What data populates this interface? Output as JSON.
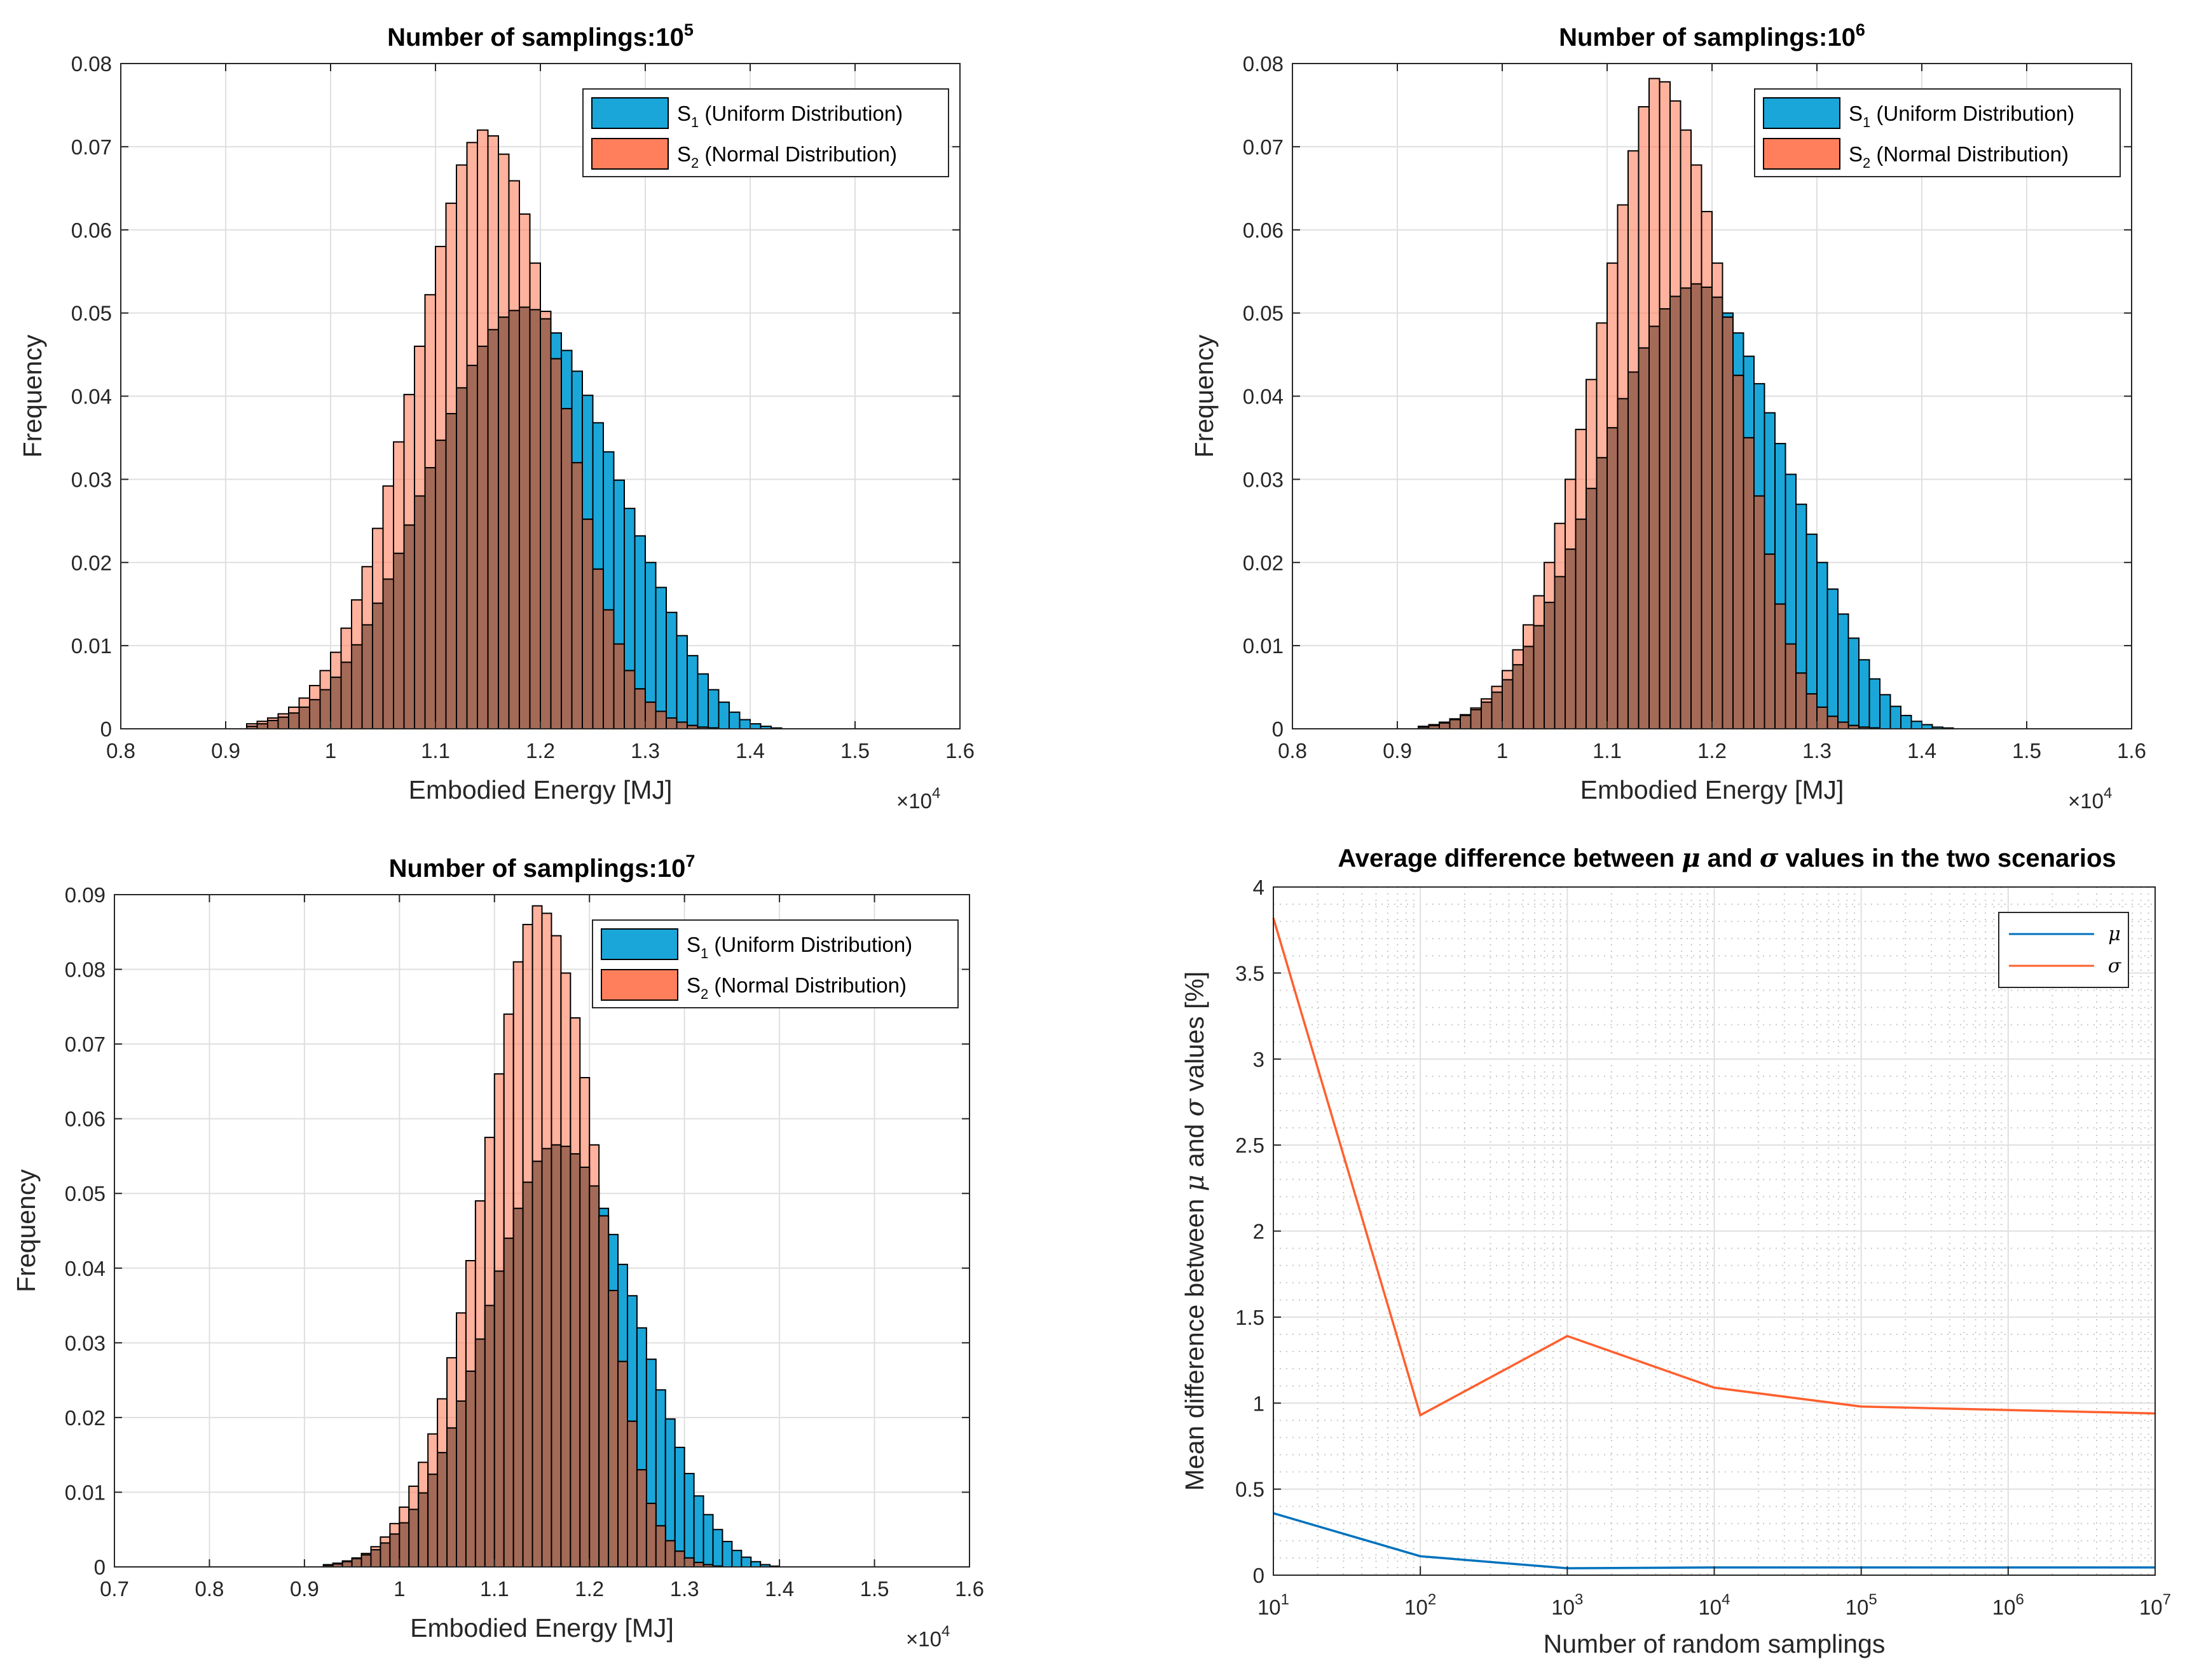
{
  "colors": {
    "uniform": "#1aa6d9",
    "normal": "#ff7f5c",
    "overlap": "#a36a57",
    "mu_line": "#0072bd",
    "sigma_line": "#ff5f2e"
  },
  "legend_labels": {
    "s1_main": "S",
    "s1_sub": "1",
    "s1_rest": " (Uniform Distribution)",
    "s2_main": "S",
    "s2_sub": "2",
    "s2_rest": " (Normal Distribution)"
  },
  "chart_data": [
    {
      "type": "bar",
      "title": "Number of samplings:10",
      "title_exp": "5",
      "xlabel": "Embodied Energy [MJ]",
      "ylabel": "Frequency",
      "x_multiplier": "×10",
      "x_multiplier_exp": "4",
      "xlim": [
        0.8,
        1.6
      ],
      "ylim": [
        0,
        0.08
      ],
      "xticks": [
        "0.8",
        "0.9",
        "1",
        "1.1",
        "1.2",
        "1.3",
        "1.4",
        "1.5",
        "1.6"
      ],
      "yticks": [
        "0",
        "0.01",
        "0.02",
        "0.03",
        "0.04",
        "0.05",
        "0.06",
        "0.07",
        "0.08"
      ],
      "legend_position": "top-right",
      "bin_start": 0.83,
      "bin_width": 0.01,
      "series": [
        {
          "name": "S1 (Uniform Distribution)",
          "values": [
            0,
            0,
            0,
            0,
            0,
            0,
            0,
            0,
            0,
            0.0003,
            0.0006,
            0.001,
            0.0014,
            0.0019,
            0.0026,
            0.0035,
            0.0047,
            0.0062,
            0.008,
            0.0101,
            0.0125,
            0.0151,
            0.018,
            0.0211,
            0.0245,
            0.028,
            0.0314,
            0.0347,
            0.0379,
            0.041,
            0.0437,
            0.046,
            0.048,
            0.0495,
            0.0503,
            0.0507,
            0.0504,
            0.0493,
            0.0476,
            0.0455,
            0.043,
            0.0401,
            0.0368,
            0.0333,
            0.0299,
            0.0265,
            0.0232,
            0.02,
            0.017,
            0.014,
            0.0112,
            0.0088,
            0.0066,
            0.0047,
            0.0032,
            0.002,
            0.0011,
            0.0006,
            0.0003,
            0.0001,
            0,
            0,
            0,
            0,
            0,
            0,
            0,
            0,
            0,
            0,
            0,
            0,
            0
          ]
        },
        {
          "name": "S2 (Normal Distribution)",
          "values": [
            0,
            0,
            0,
            0,
            0,
            0,
            0,
            0,
            0,
            0.0006,
            0.0009,
            0.0013,
            0.0018,
            0.0026,
            0.0037,
            0.0052,
            0.007,
            0.0092,
            0.0121,
            0.0155,
            0.0195,
            0.0241,
            0.0292,
            0.0345,
            0.0402,
            0.046,
            0.0522,
            0.058,
            0.0632,
            0.0678,
            0.0705,
            0.072,
            0.0713,
            0.0691,
            0.0659,
            0.0619,
            0.056,
            0.0502,
            0.0445,
            0.0385,
            0.032,
            0.0252,
            0.0192,
            0.0143,
            0.0102,
            0.007,
            0.0048,
            0.0032,
            0.0021,
            0.0013,
            0.0008,
            0.0004,
            0.0002,
            0.0001,
            0,
            0,
            0,
            0,
            0,
            0,
            0,
            0,
            0,
            0,
            0,
            0,
            0,
            0,
            0,
            0,
            0,
            0,
            0
          ]
        }
      ]
    },
    {
      "type": "bar",
      "title": "Number of samplings:10",
      "title_exp": "6",
      "xlabel": "Embodied Energy [MJ]",
      "ylabel": "Frequency",
      "x_multiplier": "×10",
      "x_multiplier_exp": "4",
      "xlim": [
        0.8,
        1.6
      ],
      "ylim": [
        0,
        0.08
      ],
      "xticks": [
        "0.8",
        "0.9",
        "1",
        "1.1",
        "1.2",
        "1.3",
        "1.4",
        "1.5",
        "1.6"
      ],
      "yticks": [
        "0",
        "0.01",
        "0.02",
        "0.03",
        "0.04",
        "0.05",
        "0.06",
        "0.07",
        "0.08"
      ],
      "legend_position": "top-right",
      "bin_start": 0.83,
      "bin_width": 0.01,
      "series": [
        {
          "name": "S1 (Uniform Distribution)",
          "values": [
            0,
            0,
            0,
            0,
            0,
            0,
            0,
            0,
            0,
            0.0002,
            0.0004,
            0.0007,
            0.0011,
            0.0016,
            0.0023,
            0.0032,
            0.0044,
            0.0059,
            0.0077,
            0.0099,
            0.0124,
            0.0152,
            0.0183,
            0.0216,
            0.0252,
            0.0289,
            0.0326,
            0.0362,
            0.0397,
            0.0429,
            0.0458,
            0.0484,
            0.0505,
            0.052,
            0.053,
            0.0535,
            0.0531,
            0.0519,
            0.05,
            0.0476,
            0.0448,
            0.0415,
            0.038,
            0.0343,
            0.0306,
            0.027,
            0.0234,
            0.02,
            0.0168,
            0.0138,
            0.0109,
            0.0083,
            0.006,
            0.0041,
            0.0027,
            0.0016,
            0.0009,
            0.0005,
            0.0002,
            0.0001,
            0,
            0,
            0,
            0,
            0,
            0,
            0,
            0,
            0,
            0,
            0,
            0,
            0
          ]
        },
        {
          "name": "S2 (Normal Distribution)",
          "values": [
            0,
            0,
            0,
            0,
            0,
            0,
            0,
            0,
            0,
            0.0003,
            0.0005,
            0.0008,
            0.0012,
            0.0017,
            0.0025,
            0.0036,
            0.0051,
            0.007,
            0.0095,
            0.0125,
            0.016,
            0.02,
            0.0247,
            0.03,
            0.036,
            0.042,
            0.0488,
            0.056,
            0.063,
            0.0695,
            0.0748,
            0.0782,
            0.0778,
            0.0755,
            0.072,
            0.0678,
            0.0622,
            0.056,
            0.0495,
            0.0425,
            0.035,
            0.028,
            0.021,
            0.015,
            0.0102,
            0.0067,
            0.0042,
            0.0026,
            0.0015,
            0.0008,
            0.0004,
            0.0002,
            0.0001,
            0,
            0,
            0,
            0,
            0,
            0,
            0,
            0,
            0,
            0,
            0,
            0,
            0,
            0,
            0,
            0,
            0,
            0,
            0,
            0
          ]
        }
      ]
    },
    {
      "type": "bar",
      "title": "Number of samplings:10",
      "title_exp": "7",
      "xlabel": "Embodied Energy [MJ]",
      "ylabel": "Frequency",
      "x_multiplier": "×10",
      "x_multiplier_exp": "4",
      "xlim": [
        0.7,
        1.6
      ],
      "ylim": [
        0,
        0.09
      ],
      "xticks": [
        "0.7",
        "0.8",
        "0.9",
        "1",
        "1.1",
        "1.2",
        "1.3",
        "1.4",
        "1.5",
        "1.6"
      ],
      "yticks": [
        "0",
        "0.01",
        "0.02",
        "0.03",
        "0.04",
        "0.05",
        "0.06",
        "0.07",
        "0.08",
        "0.09"
      ],
      "legend_position": "top-right",
      "bin_start": 0.8,
      "bin_width": 0.01,
      "series": [
        {
          "name": "S1 (Uniform Distribution)",
          "values": [
            0,
            0,
            0,
            0,
            0,
            0,
            0,
            0,
            0,
            0,
            0,
            0,
            0.0002,
            0.0004,
            0.0007,
            0.0011,
            0.0016,
            0.0023,
            0.0032,
            0.0044,
            0.0059,
            0.0077,
            0.0099,
            0.0124,
            0.0153,
            0.0186,
            0.0222,
            0.0262,
            0.0305,
            0.035,
            0.0396,
            0.044,
            0.048,
            0.0515,
            0.0543,
            0.056,
            0.0565,
            0.0563,
            0.0553,
            0.0535,
            0.051,
            0.048,
            0.0445,
            0.0405,
            0.0363,
            0.032,
            0.0278,
            0.0237,
            0.0198,
            0.016,
            0.0125,
            0.0095,
            0.007,
            0.005,
            0.0034,
            0.0022,
            0.0013,
            0.0007,
            0.0003,
            0.0001,
            0,
            0,
            0,
            0,
            0,
            0,
            0,
            0,
            0,
            0,
            0,
            0,
            0,
            0,
            0,
            0
          ]
        },
        {
          "name": "S2 (Normal Distribution)",
          "values": [
            0,
            0,
            0,
            0,
            0,
            0,
            0,
            0,
            0,
            0,
            0,
            0,
            0.0003,
            0.0005,
            0.0008,
            0.0012,
            0.0018,
            0.0027,
            0.004,
            0.0058,
            0.008,
            0.0108,
            0.014,
            0.0178,
            0.0225,
            0.028,
            0.034,
            0.041,
            0.049,
            0.0575,
            0.066,
            0.074,
            0.081,
            0.086,
            0.0885,
            0.0875,
            0.0845,
            0.0795,
            0.0735,
            0.0655,
            0.0565,
            0.047,
            0.037,
            0.0275,
            0.0195,
            0.013,
            0.0085,
            0.0055,
            0.0035,
            0.0021,
            0.0012,
            0.0006,
            0.0003,
            0.0001,
            0,
            0,
            0,
            0,
            0,
            0,
            0,
            0,
            0,
            0,
            0,
            0,
            0,
            0,
            0,
            0,
            0,
            0,
            0,
            0,
            0,
            0
          ]
        }
      ]
    },
    {
      "type": "line",
      "title_parts": [
        "Average difference between ",
        "μ",
        " and ",
        "σ",
        " values in the two scenarios"
      ],
      "xlabel": "Number of random samplings",
      "ylabel_parts": [
        "Mean difference between ",
        "μ",
        " and ",
        "σ",
        " values [%]"
      ],
      "x_scale": "log",
      "xlim": [
        10,
        10000000
      ],
      "ylim": [
        0,
        4
      ],
      "x_exponents": [
        "1",
        "2",
        "3",
        "4",
        "5",
        "6",
        "7"
      ],
      "x_base": "10",
      "yticks": [
        "0",
        "0.5",
        "1",
        "1.5",
        "2",
        "2.5",
        "3",
        "3.5",
        "4"
      ],
      "grid": true,
      "legend_position": "top-right",
      "x": [
        10,
        100,
        1000,
        10000,
        100000,
        1000000,
        10000000
      ],
      "series": [
        {
          "name": "μ",
          "values": [
            0.36,
            0.11,
            0.04,
            0.045,
            0.045,
            0.045,
            0.045
          ]
        },
        {
          "name": "σ",
          "values": [
            3.82,
            0.93,
            1.39,
            1.09,
            0.98,
            0.96,
            0.94
          ]
        }
      ]
    }
  ]
}
